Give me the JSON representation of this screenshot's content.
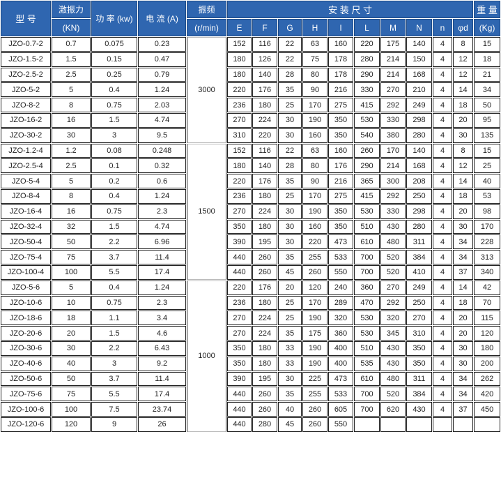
{
  "header": {
    "model": "型 号",
    "force": "激振力",
    "force_unit": "(KN)",
    "power": "功 率 (kw)",
    "current": "电 流 (A)",
    "freq": "振频",
    "freq_unit": "(r/min)",
    "install": "安 装 尺 寸",
    "weight": "重 量",
    "weight_unit": "(Kg)",
    "dims": [
      "E",
      "F",
      "G",
      "H",
      "I",
      "L",
      "M",
      "N",
      "n",
      "φd"
    ]
  },
  "header_color": "#2f66b0",
  "groups": [
    {
      "freq": "3000",
      "rows": [
        [
          "JZO-0.7-2",
          "0.7",
          "0.075",
          "0.23",
          "152",
          "116",
          "22",
          "63",
          "160",
          "220",
          "175",
          "140",
          "4",
          "8",
          "15"
        ],
        [
          "JZO-1.5-2",
          "1.5",
          "0.15",
          "0.47",
          "180",
          "126",
          "22",
          "75",
          "178",
          "280",
          "214",
          "150",
          "4",
          "12",
          "18"
        ],
        [
          "JZO-2.5-2",
          "2.5",
          "0.25",
          "0.79",
          "180",
          "140",
          "28",
          "80",
          "178",
          "290",
          "214",
          "168",
          "4",
          "12",
          "21"
        ],
        [
          "JZO-5-2",
          "5",
          "0.4",
          "1.24",
          "220",
          "176",
          "35",
          "90",
          "216",
          "330",
          "270",
          "210",
          "4",
          "14",
          "34"
        ],
        [
          "JZO-8-2",
          "8",
          "0.75",
          "2.03",
          "236",
          "180",
          "25",
          "170",
          "275",
          "415",
          "292",
          "249",
          "4",
          "18",
          "50"
        ],
        [
          "JZO-16-2",
          "16",
          "1.5",
          "4.74",
          "270",
          "224",
          "30",
          "190",
          "350",
          "530",
          "330",
          "298",
          "4",
          "20",
          "95"
        ],
        [
          "JZO-30-2",
          "30",
          "3",
          "9.5",
          "310",
          "220",
          "30",
          "160",
          "350",
          "540",
          "380",
          "280",
          "4",
          "30",
          "135"
        ]
      ]
    },
    {
      "freq": "1500",
      "rows": [
        [
          "JZO-1.2-4",
          "1.2",
          "0.08",
          "0.248",
          "152",
          "116",
          "22",
          "63",
          "160",
          "260",
          "170",
          "140",
          "4",
          "8",
          "15"
        ],
        [
          "JZO-2.5-4",
          "2.5",
          "0.1",
          "0.32",
          "180",
          "140",
          "28",
          "80",
          "176",
          "290",
          "214",
          "168",
          "4",
          "12",
          "25"
        ],
        [
          "JZO-5-4",
          "5",
          "0.2",
          "0.6",
          "220",
          "176",
          "35",
          "90",
          "216",
          "365",
          "300",
          "208",
          "4",
          "14",
          "40"
        ],
        [
          "JZO-8-4",
          "8",
          "0.4",
          "1.24",
          "236",
          "180",
          "25",
          "170",
          "275",
          "415",
          "292",
          "250",
          "4",
          "18",
          "53"
        ],
        [
          "JZO-16-4",
          "16",
          "0.75",
          "2.3",
          "270",
          "224",
          "30",
          "190",
          "350",
          "530",
          "330",
          "298",
          "4",
          "20",
          "98"
        ],
        [
          "JZO-32-4",
          "32",
          "1.5",
          "4.74",
          "350",
          "180",
          "30",
          "160",
          "350",
          "510",
          "430",
          "280",
          "4",
          "30",
          "170"
        ],
        [
          "JZO-50-4",
          "50",
          "2.2",
          "6.96",
          "390",
          "195",
          "30",
          "220",
          "473",
          "610",
          "480",
          "311",
          "4",
          "34",
          "228"
        ],
        [
          "JZO-75-4",
          "75",
          "3.7",
          "11.4",
          "440",
          "260",
          "35",
          "255",
          "533",
          "700",
          "520",
          "384",
          "4",
          "34",
          "313"
        ],
        [
          "JZO-100-4",
          "100",
          "5.5",
          "17.4",
          "440",
          "260",
          "45",
          "260",
          "550",
          "700",
          "520",
          "410",
          "4",
          "37",
          "340"
        ]
      ]
    },
    {
      "freq": "1000",
      "rows": [
        [
          "JZO-5-6",
          "5",
          "0.4",
          "1.24",
          "220",
          "176",
          "20",
          "120",
          "240",
          "360",
          "270",
          "249",
          "4",
          "14",
          "42"
        ],
        [
          "JZO-10-6",
          "10",
          "0.75",
          "2.3",
          "236",
          "180",
          "25",
          "170",
          "289",
          "470",
          "292",
          "250",
          "4",
          "18",
          "70"
        ],
        [
          "JZO-18-6",
          "18",
          "1.1",
          "3.4",
          "270",
          "224",
          "25",
          "190",
          "320",
          "530",
          "320",
          "270",
          "4",
          "20",
          "115"
        ],
        [
          "JZO-20-6",
          "20",
          "1.5",
          "4.6",
          "270",
          "224",
          "35",
          "175",
          "360",
          "530",
          "345",
          "310",
          "4",
          "20",
          "120"
        ],
        [
          "JZO-30-6",
          "30",
          "2.2",
          "6.43",
          "350",
          "180",
          "33",
          "190",
          "400",
          "510",
          "430",
          "350",
          "4",
          "30",
          "180"
        ],
        [
          "JZO-40-6",
          "40",
          "3",
          "9.2",
          "350",
          "180",
          "33",
          "190",
          "400",
          "535",
          "430",
          "350",
          "4",
          "30",
          "200"
        ],
        [
          "JZO-50-6",
          "50",
          "3.7",
          "11.4",
          "390",
          "195",
          "30",
          "225",
          "473",
          "610",
          "480",
          "311",
          "4",
          "34",
          "262"
        ],
        [
          "JZO-75-6",
          "75",
          "5.5",
          "17.4",
          "440",
          "260",
          "35",
          "255",
          "533",
          "700",
          "520",
          "384",
          "4",
          "34",
          "420"
        ],
        [
          "JZO-100-6",
          "100",
          "7.5",
          "23.74",
          "440",
          "260",
          "40",
          "260",
          "605",
          "700",
          "620",
          "430",
          "4",
          "37",
          "450"
        ],
        [
          "JZO-120-6",
          "120",
          "9",
          "26",
          "440",
          "280",
          "45",
          "260",
          "550",
          "",
          "",
          "",
          "",
          "",
          ""
        ]
      ]
    }
  ]
}
